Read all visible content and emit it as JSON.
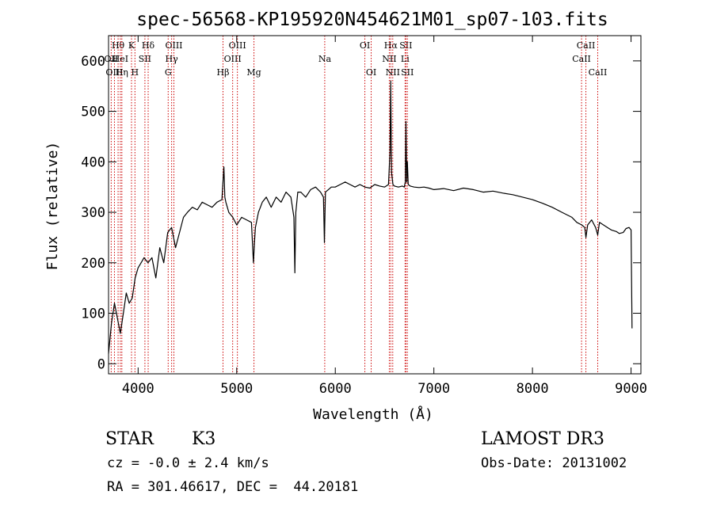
{
  "chart_data": {
    "type": "line",
    "title": "spec-56568-KP195920N454621M01_sp07-103.fits",
    "xlabel": "Wavelength (Å)",
    "ylabel": "Flux (relative)",
    "xlim": [
      3700,
      9100
    ],
    "ylim": [
      -20,
      650
    ],
    "xticks": [
      4000,
      5000,
      6000,
      7000,
      8000,
      9000
    ],
    "xtick_labels": [
      "4000",
      "5000",
      "6000",
      "7000",
      "8000",
      "9000"
    ],
    "yticks": [
      0,
      100,
      200,
      300,
      400,
      500,
      600
    ],
    "ytick_labels": [
      "0",
      "100",
      "200",
      "300",
      "400",
      "500",
      "600"
    ],
    "series": [
      {
        "name": "spectrum",
        "color": "#000000",
        "x": [
          3700,
          3730,
          3760,
          3790,
          3820,
          3850,
          3880,
          3910,
          3940,
          3970,
          4000,
          4030,
          4060,
          4100,
          4140,
          4180,
          4220,
          4260,
          4300,
          4340,
          4380,
          4420,
          4460,
          4500,
          4550,
          4600,
          4650,
          4700,
          4750,
          4800,
          4850,
          4870,
          4880,
          4890,
          4920,
          4960,
          5000,
          5050,
          5100,
          5150,
          5170,
          5180,
          5190,
          5220,
          5260,
          5300,
          5350,
          5400,
          5450,
          5500,
          5550,
          5580,
          5590,
          5600,
          5620,
          5650,
          5700,
          5750,
          5800,
          5850,
          5880,
          5890,
          5900,
          5930,
          5960,
          6000,
          6050,
          6100,
          6150,
          6200,
          6250,
          6300,
          6350,
          6400,
          6450,
          6500,
          6540,
          6555,
          6562,
          6570,
          6585,
          6600,
          6640,
          6680,
          6700,
          6710,
          6717,
          6725,
          6731,
          6740,
          6760,
          6800,
          6850,
          6900,
          6950,
          7000,
          7100,
          7200,
          7300,
          7400,
          7500,
          7600,
          7700,
          7800,
          7900,
          8000,
          8100,
          8200,
          8300,
          8400,
          8450,
          8500,
          8530,
          8542,
          8560,
          8600,
          8640,
          8662,
          8680,
          8720,
          8760,
          8800,
          8850,
          8880,
          8920,
          8950,
          8980,
          9000,
          9010
        ],
        "y": [
          20,
          80,
          120,
          90,
          60,
          100,
          140,
          120,
          130,
          170,
          190,
          200,
          210,
          200,
          210,
          170,
          230,
          200,
          260,
          270,
          230,
          260,
          290,
          300,
          310,
          305,
          320,
          315,
          310,
          320,
          325,
          390,
          330,
          320,
          300,
          290,
          275,
          290,
          285,
          280,
          200,
          240,
          270,
          300,
          320,
          330,
          310,
          330,
          320,
          340,
          330,
          290,
          180,
          300,
          340,
          340,
          330,
          345,
          350,
          340,
          330,
          240,
          340,
          345,
          350,
          350,
          355,
          360,
          355,
          350,
          355,
          350,
          348,
          355,
          352,
          350,
          355,
          420,
          560,
          380,
          355,
          352,
          350,
          352,
          350,
          360,
          480,
          360,
          400,
          355,
          352,
          350,
          349,
          350,
          348,
          345,
          347,
          343,
          348,
          345,
          340,
          342,
          338,
          335,
          330,
          325,
          318,
          310,
          300,
          290,
          280,
          275,
          270,
          250,
          275,
          285,
          270,
          255,
          280,
          275,
          270,
          265,
          262,
          258,
          260,
          268,
          270,
          265,
          70
        ]
      }
    ],
    "line_markers": [
      {
        "label": "Hθ",
        "wavelength": 3797,
        "row": 1
      },
      {
        "label": "OII",
        "wavelength": 3727,
        "row": 2
      },
      {
        "label": "OIII",
        "wavelength": 3760,
        "row": 3
      },
      {
        "label": "HeI",
        "wavelength": 3820,
        "row": 2
      },
      {
        "label": "Hη",
        "wavelength": 3835,
        "row": 3
      },
      {
        "label": "K",
        "wavelength": 3933,
        "row": 1
      },
      {
        "label": "H",
        "wavelength": 3968,
        "row": 3
      },
      {
        "label": "SII",
        "wavelength": 4069,
        "row": 2
      },
      {
        "label": "Hδ",
        "wavelength": 4102,
        "row": 1
      },
      {
        "label": "OIII",
        "wavelength": 4363,
        "row": 1
      },
      {
        "label": "Hγ",
        "wavelength": 4340,
        "row": 2
      },
      {
        "label": "G",
        "wavelength": 4305,
        "row": 3
      },
      {
        "label": "Hβ",
        "wavelength": 4861,
        "row": 3
      },
      {
        "label": "OIII",
        "wavelength": 5007,
        "row": 1
      },
      {
        "label": "OIII",
        "wavelength": 4959,
        "row": 2
      },
      {
        "label": "Mg",
        "wavelength": 5175,
        "row": 3
      },
      {
        "label": "Na",
        "wavelength": 5893,
        "row": 2
      },
      {
        "label": "OI",
        "wavelength": 6300,
        "row": 1
      },
      {
        "label": "OI",
        "wavelength": 6364,
        "row": 3
      },
      {
        "label": "Hα",
        "wavelength": 6563,
        "row": 1
      },
      {
        "label": "NII",
        "wavelength": 6548,
        "row": 2
      },
      {
        "label": "NII",
        "wavelength": 6583,
        "row": 3
      },
      {
        "label": "SII",
        "wavelength": 6716,
        "row": 1
      },
      {
        "label": "Li",
        "wavelength": 6708,
        "row": 2
      },
      {
        "label": "SII",
        "wavelength": 6731,
        "row": 3
      },
      {
        "label": "CaII",
        "wavelength": 8542,
        "row": 1
      },
      {
        "label": "CaII",
        "wavelength": 8498,
        "row": 2
      },
      {
        "label": "CaII",
        "wavelength": 8662,
        "row": 3
      }
    ]
  },
  "info": {
    "class_label": "STAR",
    "subclass": "K3",
    "survey": "LAMOST DR3",
    "redshift": "cz = -0.0 ± 2.4 km/s",
    "obs_date": "Obs-Date: 20131002",
    "coords": "RA = 301.46617, DEC =  44.20181"
  },
  "colors": {
    "axis": "#000000",
    "marker": "#cc0000"
  }
}
